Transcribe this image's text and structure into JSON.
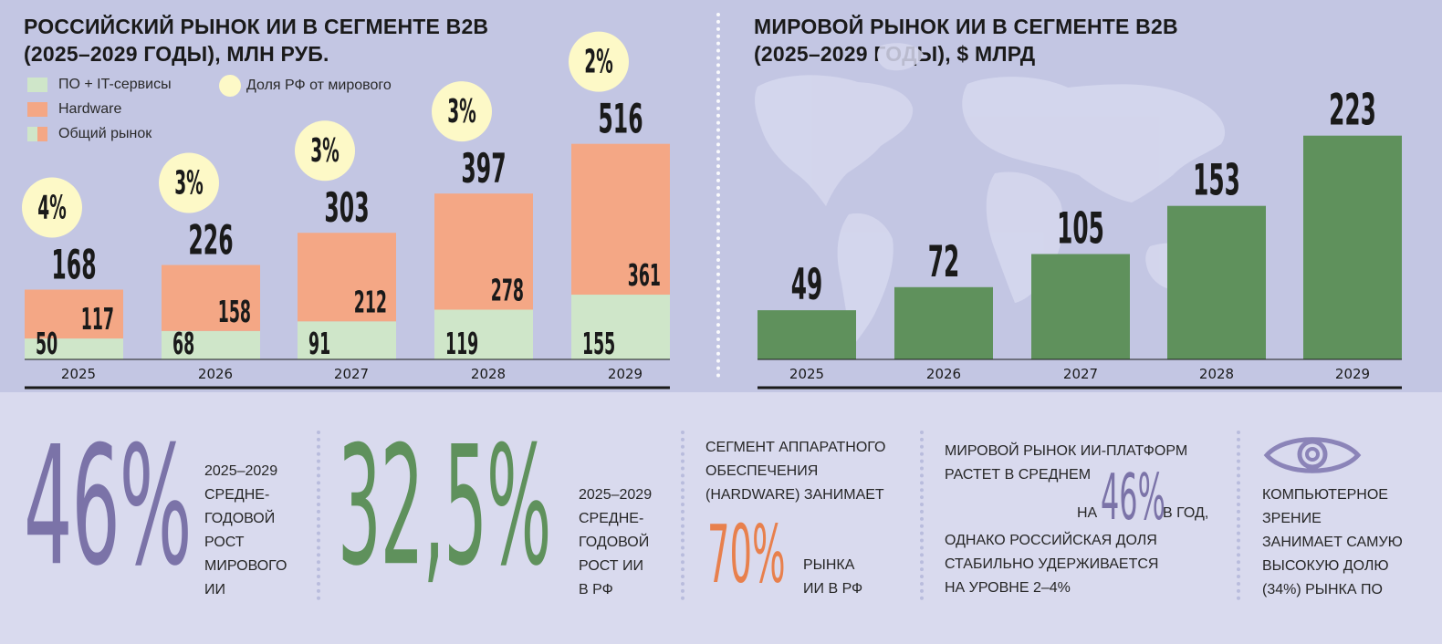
{
  "left_chart": {
    "title_line1": "РОССИЙСКИЙ РЫНОК ИИ В СЕГМЕНТЕ B2B",
    "title_line2": "(2025–2029 ГОДЫ), МЛН РУБ.",
    "legend": {
      "software": "ПО + IT-сервисы",
      "hardware": "Hardware",
      "total": "Общий рынок",
      "share": "Доля РФ от мирового"
    }
  },
  "right_chart": {
    "title_line1": "МИРОВОЙ РЫНОК ИИ В СЕГМЕНТЕ B2B",
    "title_line2": "(2025–2029 ГОДЫ), $ МЛРД"
  },
  "colors": {
    "software": "#cfe6c9",
    "hardware": "#f4a785",
    "world": "#5f915c",
    "share_circle": "#fdf9c7",
    "purple": "#7b73a8",
    "green": "#5f915c",
    "orange": "#e8804d"
  },
  "chart_data": [
    {
      "type": "bar",
      "stacked": true,
      "categories": [
        "2025",
        "2026",
        "2027",
        "2028",
        "2029"
      ],
      "series": [
        {
          "name": "ПО + IT-сервисы",
          "values": [
            50,
            68,
            91,
            119,
            155
          ]
        },
        {
          "name": "Hardware",
          "values": [
            117,
            158,
            212,
            278,
            361
          ]
        }
      ],
      "totals": [
        168,
        226,
        303,
        397,
        516
      ],
      "share_labels": [
        "4%",
        "3%",
        "3%",
        "3%",
        "2%"
      ],
      "ylim": [
        0,
        560
      ]
    },
    {
      "type": "bar",
      "categories": [
        "2025",
        "2026",
        "2027",
        "2028",
        "2029"
      ],
      "values": [
        49,
        72,
        105,
        153,
        223
      ],
      "ylim": [
        0,
        250
      ]
    }
  ],
  "stats": {
    "world_growth_value": "46%",
    "world_growth_text": [
      "2025–2029",
      "средне-",
      "годовой",
      "рост",
      "мирового",
      "ИИ"
    ],
    "rf_growth_value": "32,5%",
    "rf_growth_text": [
      "2025–2029",
      "средне-",
      "годовой",
      "рост ИИ",
      "в РФ"
    ],
    "hardware_text_top": [
      "Сегмент аппаратного",
      "обеспечения",
      "(hardware) занимает"
    ],
    "hardware_value": "70%",
    "hardware_text_bottom": [
      "рынка",
      "ИИ в РФ"
    ],
    "platform_text": [
      "Мировой рынок ИИ-платформ",
      "растет в среднем"
    ],
    "platform_pre": "на",
    "platform_value": "46%",
    "platform_post": "в год,",
    "platform_text_bottom": [
      "однако российская доля",
      "стабильно удерживается",
      "на уровне 2–4%"
    ],
    "cv_text": [
      "Компьютерное",
      "зрение",
      "занимает самую",
      "высокую долю",
      "(34%) рынка ПО"
    ]
  }
}
